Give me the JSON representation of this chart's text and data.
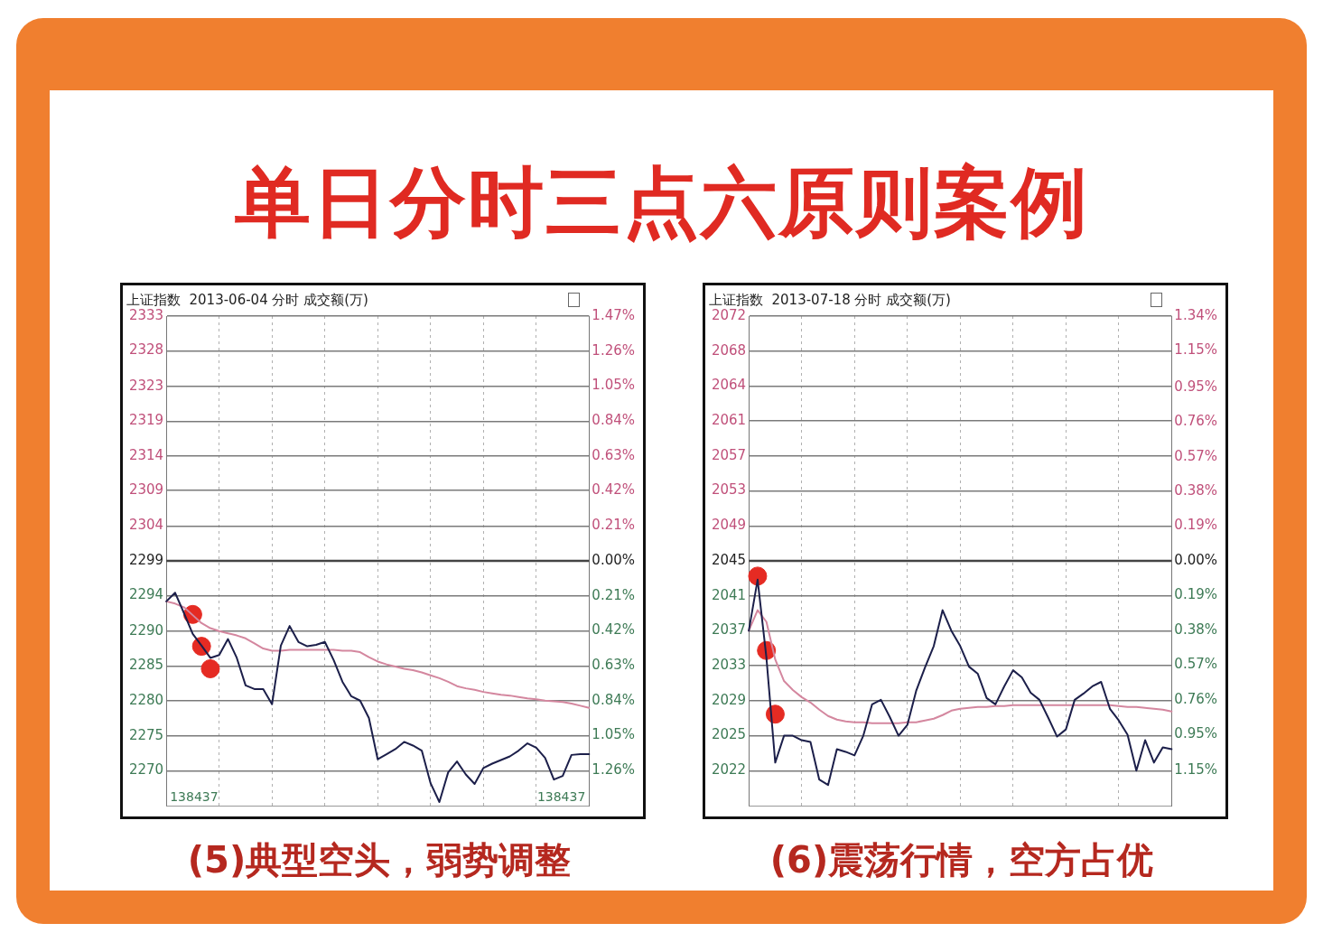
{
  "chart_data": [
    {
      "type": "line",
      "title": "上证指数  2013-06-04 分时 成交额(万)",
      "annotations": [
        "单日分时三点六原则案例",
        "138437",
        "(5)典型空头，弱势调整"
      ],
      "grid": true,
      "categories": [
        null,
        null,
        null,
        null,
        null,
        null,
        null,
        null,
        null,
        null,
        null,
        null,
        null,
        null,
        null,
        null,
        null,
        null,
        null,
        null,
        null,
        null,
        null,
        null,
        null,
        null,
        null,
        null,
        null,
        null,
        null,
        null,
        null,
        null,
        null,
        null,
        null,
        null,
        null,
        null,
        null,
        null,
        null,
        null,
        null,
        null,
        null,
        null,
        null
      ],
      "ylim": [
        2265.4,
        2333.0
      ],
      "yticks": [
        {
          "value": 2270.2,
          "label": "2270"
        },
        {
          "value": 2275.0,
          "label": "2275"
        },
        {
          "value": 2279.9,
          "label": "2280"
        },
        {
          "value": 2284.7,
          "label": "2285"
        },
        {
          "value": 2289.5,
          "label": "2290"
        },
        {
          "value": 2294.4,
          "label": "2294"
        },
        {
          "value": 2299.2,
          "label": "2299"
        },
        {
          "value": 2304.0,
          "label": "2304"
        },
        {
          "value": 2308.9,
          "label": "2309"
        },
        {
          "value": 2313.7,
          "label": "2314"
        },
        {
          "value": 2318.5,
          "label": "2319"
        },
        {
          "value": 2323.3,
          "label": "2323"
        },
        {
          "value": 2328.2,
          "label": "2328"
        },
        {
          "value": 2333.0,
          "label": "2333"
        }
      ],
      "y2lim": [
        -1.47,
        1.47
      ],
      "y2ticks": [
        {
          "value": -1.26,
          "label": "1.26%"
        },
        {
          "value": -1.05,
          "label": "1.05%"
        },
        {
          "value": -0.84,
          "label": "0.84%"
        },
        {
          "value": -0.63,
          "label": "0.63%"
        },
        {
          "value": -0.42,
          "label": "0.42%"
        },
        {
          "value": -0.21,
          "label": "0.21%"
        },
        {
          "value": 0,
          "label": "0.00%"
        },
        {
          "value": 0.21,
          "label": "0.21%"
        },
        {
          "value": 0.42,
          "label": "0.42%"
        },
        {
          "value": 0.63,
          "label": "0.63%"
        },
        {
          "value": 0.84,
          "label": "0.84%"
        },
        {
          "value": 1.05,
          "label": "1.05%"
        },
        {
          "value": 1.26,
          "label": "1.26%"
        },
        {
          "value": 1.47,
          "label": "1.47%"
        }
      ],
      "ref_lines": [
        {
          "axis": "y",
          "value": 2299.2,
          "color": "#444444"
        }
      ],
      "series": [
        {
          "color": "#1c1f4a",
          "values": [
            2293.6,
            2294.8,
            2292.0,
            2289.1,
            2287.5,
            2285.8,
            2286.2,
            2288.4,
            2285.8,
            2282.0,
            2281.5,
            2281.5,
            2279.4,
            2287.5,
            2290.2,
            2288.0,
            2287.4,
            2287.6,
            2288.0,
            2285.5,
            2282.5,
            2280.5,
            2279.9,
            2277.5,
            2271.8,
            2272.5,
            2273.2,
            2274.2,
            2273.7,
            2273.0,
            2268.5,
            2265.9,
            2270.0,
            2271.5,
            2269.7,
            2268.4,
            2270.6,
            2271.2,
            2271.7,
            2272.2,
            2273.0,
            2274.0,
            2273.4,
            2272.0,
            2269.0,
            2269.5,
            2272.4,
            2272.5,
            2272.5
          ]
        },
        {
          "color": "#d4879f",
          "values": [
            2293.6,
            2293.3,
            2292.8,
            2291.7,
            2290.6,
            2289.9,
            2289.5,
            2289.2,
            2288.9,
            2288.5,
            2287.8,
            2287.1,
            2286.8,
            2286.8,
            2286.9,
            2286.9,
            2286.9,
            2286.9,
            2286.9,
            2286.9,
            2286.8,
            2286.8,
            2286.6,
            2285.9,
            2285.3,
            2284.9,
            2284.6,
            2284.3,
            2284.1,
            2283.8,
            2283.4,
            2283.0,
            2282.5,
            2281.9,
            2281.6,
            2281.4,
            2281.1,
            2280.9,
            2280.7,
            2280.6,
            2280.4,
            2280.2,
            2280.1,
            2279.9,
            2279.8,
            2279.7,
            2279.5,
            2279.2,
            2278.9
          ]
        },
        {
          "type": "scatter",
          "color": "#e52b23",
          "values": [
            null,
            null,
            null,
            2291.8,
            2287.4,
            2284.3,
            null,
            null,
            null,
            null,
            null,
            null,
            null,
            null,
            null,
            null,
            null,
            null,
            null,
            null,
            null,
            null,
            null,
            null,
            null,
            null,
            null,
            null,
            null,
            null,
            null,
            null,
            null,
            null,
            null,
            null,
            null,
            null,
            null,
            null,
            null,
            null,
            null,
            null,
            null,
            null,
            null,
            null,
            null
          ]
        }
      ]
    },
    {
      "type": "line",
      "title": "上证指数  2013-07-18 分时 成交额(万)",
      "annotations": [
        "(6)震荡行情，空方占优"
      ],
      "grid": true,
      "categories": [
        null,
        null,
        null,
        null,
        null,
        null,
        null,
        null,
        null,
        null,
        null,
        null,
        null,
        null,
        null,
        null,
        null,
        null,
        null,
        null,
        null,
        null,
        null,
        null,
        null,
        null,
        null,
        null,
        null,
        null,
        null,
        null,
        null,
        null,
        null,
        null,
        null,
        null,
        null,
        null,
        null,
        null,
        null,
        null,
        null,
        null,
        null,
        null,
        null
      ],
      "ylim": [
        2017.7,
        2072.3
      ],
      "yticks": [
        {
          "value": 2021.6,
          "label": "2022"
        },
        {
          "value": 2025.5,
          "label": "2025"
        },
        {
          "value": 2029.4,
          "label": "2029"
        },
        {
          "value": 2033.3,
          "label": "2033"
        },
        {
          "value": 2037.2,
          "label": "2037"
        },
        {
          "value": 2041.1,
          "label": "2041"
        },
        {
          "value": 2045.0,
          "label": "2045"
        },
        {
          "value": 2048.9,
          "label": "2049"
        },
        {
          "value": 2052.8,
          "label": "2053"
        },
        {
          "value": 2056.7,
          "label": "2057"
        },
        {
          "value": 2060.6,
          "label": "2061"
        },
        {
          "value": 2064.5,
          "label": "2064"
        },
        {
          "value": 2068.4,
          "label": "2068"
        },
        {
          "value": 2072.3,
          "label": "2072"
        }
      ],
      "y2lim": [
        -1.34,
        1.34
      ],
      "y2ticks": [
        {
          "value": -1.15,
          "label": "1.15%"
        },
        {
          "value": -0.95,
          "label": "0.95%"
        },
        {
          "value": -0.76,
          "label": "0.76%"
        },
        {
          "value": -0.57,
          "label": "0.57%"
        },
        {
          "value": -0.38,
          "label": "0.38%"
        },
        {
          "value": -0.19,
          "label": "0.19%"
        },
        {
          "value": 0,
          "label": "0.00%"
        },
        {
          "value": 0.19,
          "label": "0.19%"
        },
        {
          "value": 0.38,
          "label": "0.38%"
        },
        {
          "value": 0.57,
          "label": "0.57%"
        },
        {
          "value": 0.76,
          "label": "0.76%"
        },
        {
          "value": 0.95,
          "label": "0.95%"
        },
        {
          "value": 1.15,
          "label": "1.15%"
        },
        {
          "value": 1.34,
          "label": "1.34%"
        }
      ],
      "ref_lines": [
        {
          "axis": "y",
          "value": 2045.0,
          "color": "#444444"
        }
      ],
      "series": [
        {
          "color": "#1c1f4a",
          "values": [
            2037.2,
            2042.9,
            2034.2,
            2022.5,
            2025.5,
            2025.5,
            2025.0,
            2024.8,
            2020.6,
            2020.0,
            2024.0,
            2023.7,
            2023.3,
            2025.5,
            2029.0,
            2029.5,
            2027.6,
            2025.5,
            2026.7,
            2030.5,
            2033.1,
            2035.5,
            2039.5,
            2037.2,
            2035.5,
            2033.2,
            2032.4,
            2029.7,
            2029.0,
            2031.0,
            2032.8,
            2032.0,
            2030.3,
            2029.5,
            2027.5,
            2025.4,
            2026.2,
            2029.5,
            2030.2,
            2031.0,
            2031.5,
            2028.5,
            2027.2,
            2025.6,
            2021.6,
            2025.0,
            2022.5,
            2024.2,
            2024.0
          ]
        },
        {
          "color": "#d4879f",
          "values": [
            2037.2,
            2039.5,
            2038.2,
            2034.0,
            2031.6,
            2030.6,
            2029.8,
            2029.2,
            2028.4,
            2027.7,
            2027.3,
            2027.1,
            2027.0,
            2027.0,
            2026.9,
            2026.9,
            2026.9,
            2026.9,
            2027.0,
            2027.0,
            2027.2,
            2027.4,
            2027.8,
            2028.3,
            2028.5,
            2028.6,
            2028.7,
            2028.7,
            2028.8,
            2028.8,
            2028.9,
            2028.9,
            2028.9,
            2028.9,
            2028.9,
            2028.9,
            2028.9,
            2028.9,
            2028.9,
            2028.9,
            2028.9,
            2028.9,
            2028.8,
            2028.7,
            2028.7,
            2028.6,
            2028.5,
            2028.4,
            2028.2
          ]
        },
        {
          "type": "scatter",
          "color": "#e52b23",
          "values": [
            null,
            2043.3,
            2035.0,
            2027.9,
            null,
            null,
            null,
            null,
            null,
            null,
            null,
            null,
            null,
            null,
            null,
            null,
            null,
            null,
            null,
            null,
            null,
            null,
            null,
            null,
            null,
            null,
            null,
            null,
            null,
            null,
            null,
            null,
            null,
            null,
            null,
            null,
            null,
            null,
            null,
            null,
            null,
            null,
            null,
            null,
            null,
            null,
            null,
            null,
            null
          ]
        }
      ]
    }
  ]
}
